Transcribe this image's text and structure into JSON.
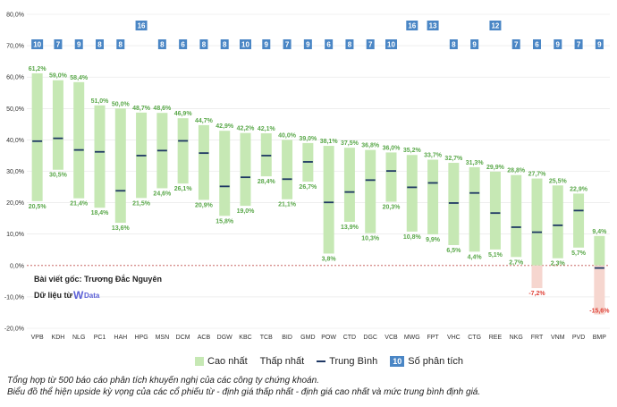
{
  "chart_data": {
    "type": "bar",
    "subtype": "floating-range",
    "categories": [
      "VPB",
      "KDH",
      "NLG",
      "PC1",
      "HAH",
      "HPG",
      "MSN",
      "DCM",
      "ACB",
      "DGW",
      "KBC",
      "TCB",
      "BID",
      "GMD",
      "POW",
      "CTD",
      "DGC",
      "VCB",
      "MWG",
      "FPT",
      "VHC",
      "CTG",
      "REE",
      "NKG",
      "FRT",
      "VNM",
      "PVD",
      "BMP"
    ],
    "series": [
      {
        "name": "Cao nhất",
        "values": [
          61.2,
          59.0,
          58.4,
          51.0,
          50.0,
          48.7,
          48.6,
          46.9,
          44.7,
          42.9,
          42.2,
          42.1,
          40.0,
          39.0,
          38.1,
          37.5,
          36.8,
          36.0,
          35.2,
          33.7,
          32.7,
          31.3,
          29.9,
          28.8,
          27.7,
          25.5,
          22.9,
          9.4
        ]
      },
      {
        "name": "Thấp nhất",
        "values": [
          20.5,
          30.5,
          21.4,
          18.4,
          13.6,
          21.5,
          24.6,
          26.1,
          20.9,
          15.8,
          19.0,
          28.4,
          21.1,
          26.7,
          3.8,
          13.9,
          10.3,
          20.3,
          10.8,
          9.9,
          6.5,
          4.4,
          5.1,
          2.7,
          -7.2,
          2.3,
          5.7,
          -15.6
        ]
      },
      {
        "name": "Trung Bình",
        "values": [
          39.6,
          40.5,
          36.8,
          36.2,
          23.8,
          35.0,
          36.6,
          39.7,
          35.8,
          25.2,
          28.1,
          35.0,
          27.5,
          33.0,
          20.1,
          23.4,
          27.2,
          30.1,
          24.9,
          26.3,
          19.9,
          23.1,
          16.7,
          12.2,
          10.6,
          12.8,
          17.5,
          -0.8
        ]
      },
      {
        "name": "Số phân tích",
        "values": [
          10,
          7,
          9,
          8,
          8,
          16,
          8,
          6,
          8,
          8,
          10,
          9,
          7,
          9,
          6,
          8,
          7,
          10,
          16,
          13,
          8,
          9,
          12,
          7,
          6,
          9,
          7,
          9
        ]
      }
    ],
    "ylim": [
      -20,
      80
    ],
    "yticks": [
      "-20,0%",
      "-10,0%",
      "0,0%",
      "10,0%",
      "20,0%",
      "30,0%",
      "40,0%",
      "50,0%",
      "60,0%",
      "70,0%",
      "80,0%"
    ],
    "high_labels": [
      "61,2%",
      "59,0%",
      "58,4%",
      "51,0%",
      "50,0%",
      "48,7%",
      "48,6%",
      "46,9%",
      "44,7%",
      "42,9%",
      "42,2%",
      "42,1%",
      "40,0%",
      "39,0%",
      "38,1%",
      "37,5%",
      "36,8%",
      "36,0%",
      "35,2%",
      "33,7%",
      "32,7%",
      "31,3%",
      "29,9%",
      "28,8%",
      "27,7%",
      "25,5%",
      "22,9%",
      "9,4%"
    ],
    "low_labels": [
      "20,5%",
      "30,5%",
      "21,4%",
      "18,4%",
      "13,6%",
      "21,5%",
      "24,6%",
      "26,1%",
      "20,9%",
      "15,8%",
      "19,0%",
      "28,4%",
      "21,1%",
      "26,7%",
      "3,8%",
      "13,9%",
      "10,3%",
      "20,3%",
      "10,8%",
      "9,9%",
      "6,5%",
      "4,4%",
      "5,1%",
      "2,7%",
      "-7,2%",
      "2,3%",
      "5,7%",
      "-15,6%"
    ],
    "count_labels": [
      "10",
      "7",
      "9",
      "8",
      "8",
      "16",
      "8",
      "6",
      "8",
      "8",
      "10",
      "9",
      "7",
      "9",
      "6",
      "8",
      "7",
      "10",
      "16",
      "13",
      "8",
      "9",
      "12",
      "7",
      "6",
      "9",
      "7",
      "9"
    ],
    "grid": true
  },
  "credit": {
    "line1": "Bài viết gốc: Trương Đắc Nguyên",
    "line2": "Dữ liệu từ",
    "logo_letter": "W",
    "logo_text": "Data"
  },
  "legend": {
    "high": "Cao nhất",
    "low": "Thấp nhất",
    "avg": "Trung Bình",
    "count_badge": "10",
    "count": "Số phân tích"
  },
  "notes": {
    "line1": "Tổng hợp từ 500 báo cáo phân tích khuyến nghị của các công ty chứng khoán.",
    "line2": "Biểu đồ thể hiện upside kỳ vọng của các cổ phiếu từ - định giá thấp nhất - định giá cao nhất và mức trung bình định giá."
  },
  "colors": {
    "positive_bar": "#c6e8b4",
    "negative_bar": "#f6d6cf",
    "avg_line": "#1f3864",
    "count_badge": "#4a86c5",
    "positive_label": "#5aa84a",
    "negative_label": "#e0443a",
    "zero_line": "#c0504d"
  }
}
